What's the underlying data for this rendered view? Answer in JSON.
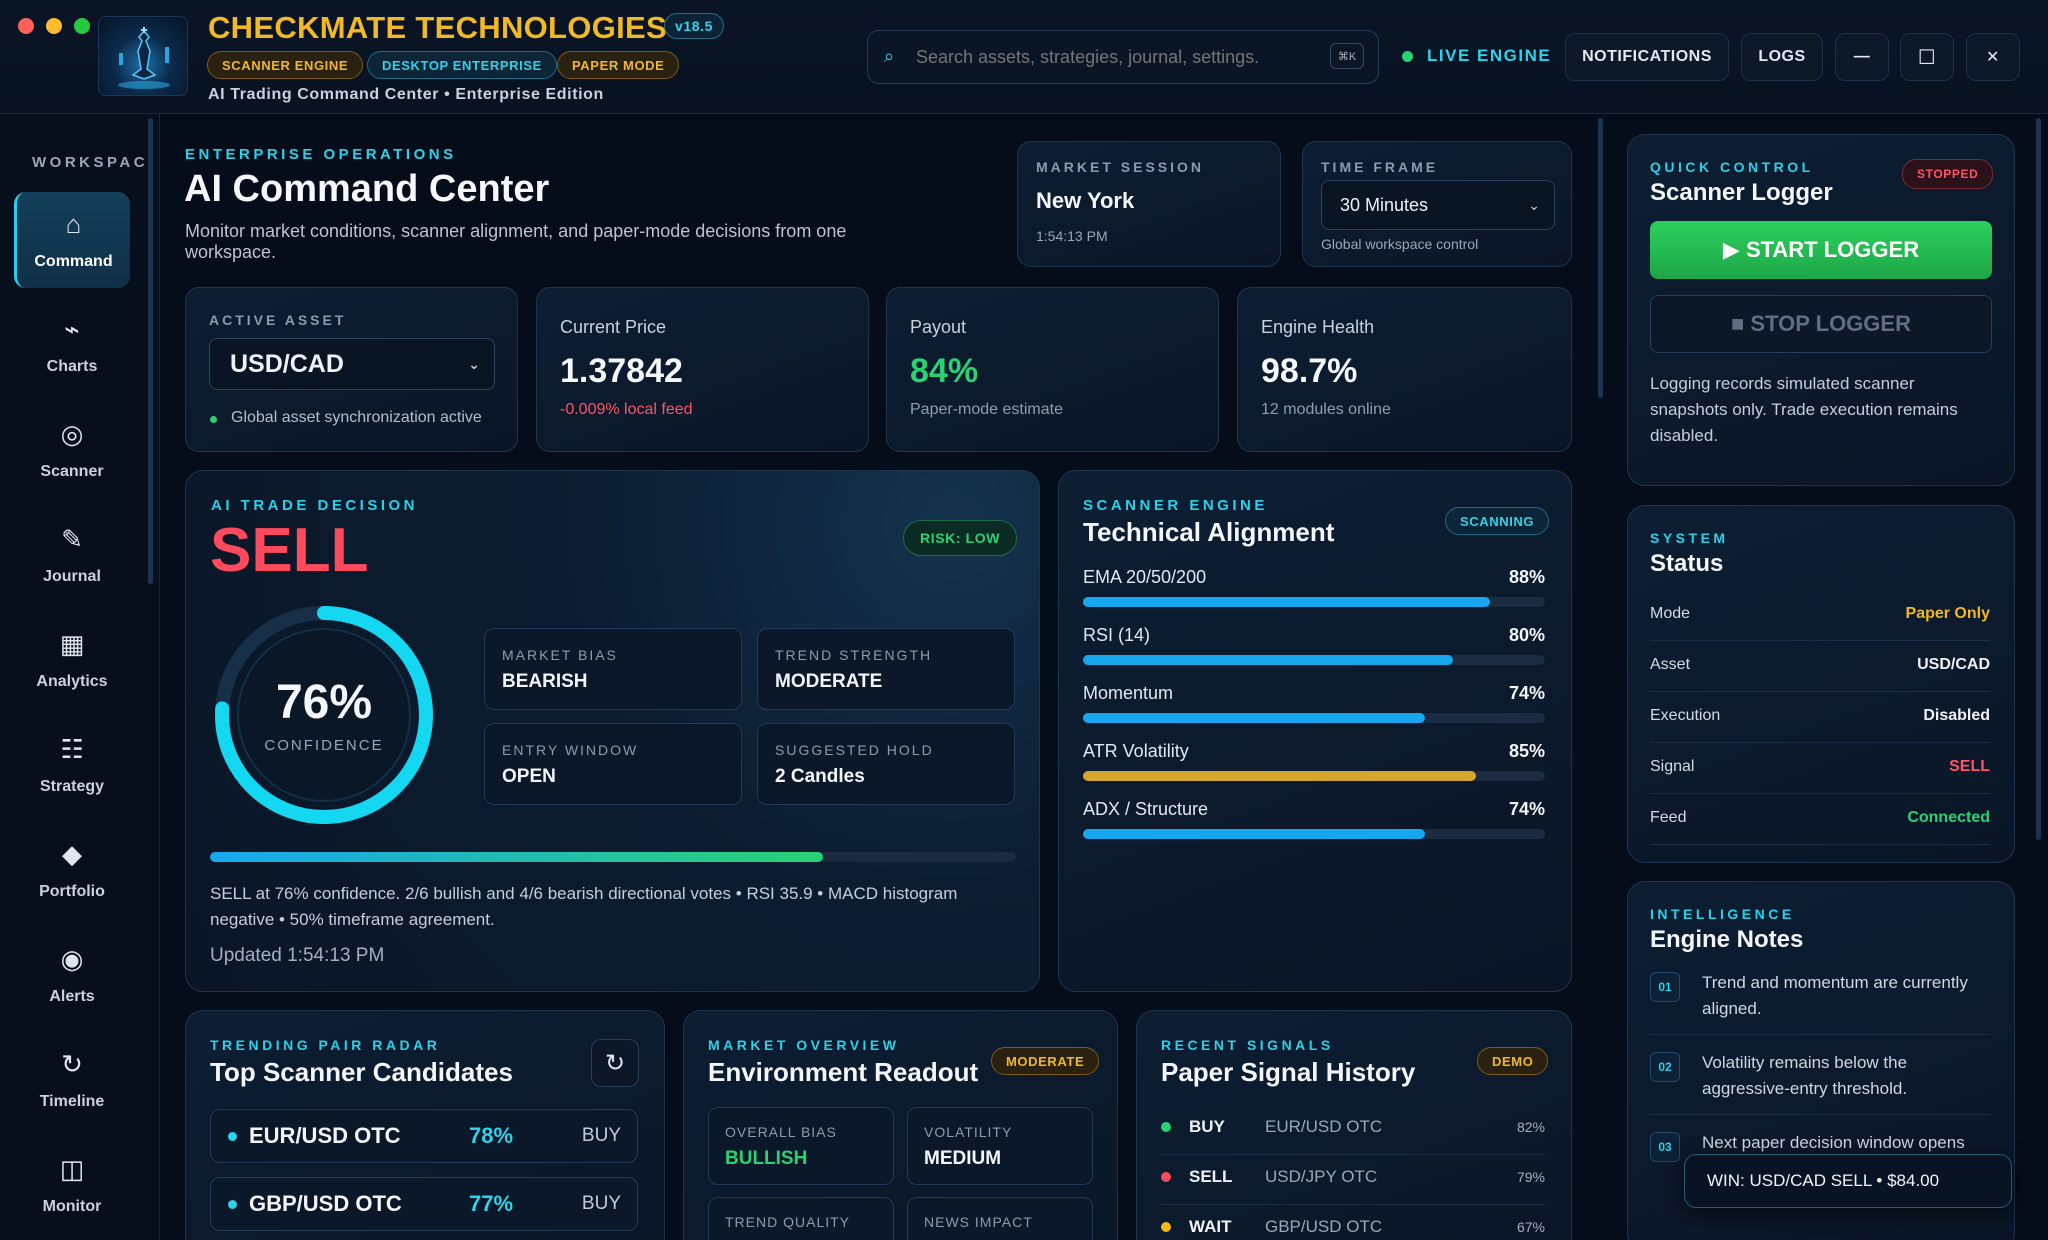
{
  "app": {
    "name": "CHECKMATE TECHNOLOGIES",
    "version": "v18.5",
    "badges": [
      "SCANNER ENGINE",
      "DESKTOP ENTERPRISE",
      "PAPER MODE"
    ],
    "subtitle": "AI Trading Command Center • Enterprise Edition"
  },
  "search": {
    "placeholder": "Search assets, strategies, journal, settings.",
    "shortcut": "⌘K"
  },
  "header": {
    "live_label": "LIVE ENGINE",
    "notifications_label": "NOTIFICATIONS",
    "logs_label": "LOGS",
    "minimize": "—",
    "maximize": "☐",
    "close": "✕"
  },
  "sidebar": {
    "title": "WORKSPACE",
    "items": [
      {
        "label": "Command",
        "icon": "⌂",
        "icon_name": "home-icon"
      },
      {
        "label": "Charts",
        "icon": "⌁",
        "icon_name": "chart-line-icon"
      },
      {
        "label": "Scanner",
        "icon": "◎",
        "icon_name": "target-icon"
      },
      {
        "label": "Journal",
        "icon": "✎",
        "icon_name": "pencil-icon"
      },
      {
        "label": "Analytics",
        "icon": "▦",
        "icon_name": "grid-chart-icon"
      },
      {
        "label": "Strategy",
        "icon": "☷",
        "icon_name": "list-icon"
      },
      {
        "label": "Portfolio",
        "icon": "◆",
        "icon_name": "diamond-icon"
      },
      {
        "label": "Alerts",
        "icon": "◉",
        "icon_name": "alert-dot-icon"
      },
      {
        "label": "Timeline",
        "icon": "↻",
        "icon_name": "history-icon"
      },
      {
        "label": "Monitor",
        "icon": "◫",
        "icon_name": "monitor-icon"
      }
    ]
  },
  "hero": {
    "eyebrow": "ENTERPRISE OPERATIONS",
    "title": "AI Command Center",
    "description": "Monitor market conditions, scanner alignment, and paper-mode decisions from one workspace."
  },
  "session": {
    "label": "MARKET SESSION",
    "city": "New York",
    "time": "1:54:13 PM"
  },
  "timeframe": {
    "label": "TIME FRAME",
    "value": "30 Minutes",
    "caption": "Global workspace control"
  },
  "kpis": {
    "asset": {
      "label": "ACTIVE ASSET",
      "value": "USD/CAD",
      "caption": "Global asset synchronization active"
    },
    "price": {
      "label": "Current Price",
      "value": "1.37842",
      "caption": "-0.009% local feed"
    },
    "payout": {
      "label": "Payout",
      "value": "84%",
      "caption": "Paper-mode estimate"
    },
    "health": {
      "label": "Engine Health",
      "value": "98.7%",
      "caption": "12 modules online"
    }
  },
  "decision": {
    "eyebrow": "AI TRADE DECISION",
    "signal": "SELL",
    "risk": "RISK: LOW",
    "confidence": 76,
    "confidence_text": "76%",
    "confidence_label": "CONFIDENCE",
    "boxes": [
      {
        "label": "MARKET BIAS",
        "value": "BEARISH"
      },
      {
        "label": "TREND STRENGTH",
        "value": "MODERATE"
      },
      {
        "label": "ENTRY WINDOW",
        "value": "OPEN"
      },
      {
        "label": "SUGGESTED HOLD",
        "value": "2 Candles"
      }
    ],
    "progress": 0.76,
    "summary": "SELL at 76% confidence. 2/6 bullish and 4/6 bearish directional votes • RSI 35.9 • MACD histogram negative • 50% timeframe agreement.",
    "updated": "Updated 1:54:13 PM"
  },
  "scanner": {
    "eyebrow": "SCANNER ENGINE",
    "title": "Technical Alignment",
    "status": "SCANNING",
    "metrics": [
      {
        "name": "EMA 20/50/200",
        "value": 88,
        "label": "88%",
        "color": "#17a7ef"
      },
      {
        "name": "RSI (14)",
        "value": 80,
        "label": "80%",
        "color": "#17a7ef"
      },
      {
        "name": "Momentum",
        "value": 74,
        "label": "74%",
        "color": "#17a7ef"
      },
      {
        "name": "ATR Volatility",
        "value": 85,
        "label": "85%",
        "color": "#d4a72c"
      },
      {
        "name": "ADX / Structure",
        "value": 74,
        "label": "74%",
        "color": "#17a7ef"
      }
    ]
  },
  "quick": {
    "eyebrow": "QUICK CONTROL",
    "title": "Scanner Logger",
    "state": "STOPPED",
    "start": "▶ START LOGGER",
    "stop": "■ STOP LOGGER",
    "note": "Logging records simulated scanner snapshots only. Trade execution remains disabled."
  },
  "status": {
    "eyebrow": "SYSTEM",
    "title": "Status",
    "rows": [
      {
        "key": "Mode",
        "value": "Paper Only",
        "color": "#f1b820"
      },
      {
        "key": "Asset",
        "value": "USD/CAD",
        "color": "#eef2f7"
      },
      {
        "key": "Execution",
        "value": "Disabled",
        "color": "#eef2f7"
      },
      {
        "key": "Signal",
        "value": "SELL",
        "color": "#ff5468"
      },
      {
        "key": "Feed",
        "value": "Connected",
        "color": "#2ad274"
      }
    ]
  },
  "notes": {
    "eyebrow": "INTELLIGENCE",
    "title": "Engine Notes",
    "items": [
      {
        "num": "01",
        "text": "Trend and momentum are currently aligned."
      },
      {
        "num": "02",
        "text": "Volatility remains below the aggressive-entry threshold."
      },
      {
        "num": "03",
        "text": "Next paper decision window opens"
      }
    ]
  },
  "toast": {
    "text": "WIN: USD/CAD SELL • $84.00"
  },
  "radar": {
    "eyebrow": "TRENDING PAIR RADAR",
    "title": "Top Scanner Candidates",
    "items": [
      {
        "pair": "EUR/USD OTC",
        "conf": "78%",
        "action": "BUY"
      },
      {
        "pair": "GBP/USD OTC",
        "conf": "77%",
        "action": "BUY"
      }
    ]
  },
  "overview": {
    "eyebrow": "MARKET OVERVIEW",
    "title": "Environment Readout",
    "badge": "MODERATE",
    "cells": [
      {
        "label": "OVERALL BIAS",
        "value": "BULLISH",
        "color": "#2ad274"
      },
      {
        "label": "VOLATILITY",
        "value": "MEDIUM",
        "color": "#f2f5fa"
      },
      {
        "label": "TREND QUALITY",
        "value": "",
        "color": "#f2f5fa"
      },
      {
        "label": "NEWS IMPACT",
        "value": "",
        "color": "#f2f5fa"
      }
    ]
  },
  "signals": {
    "eyebrow": "RECENT SIGNALS",
    "title": "Paper Signal History",
    "badge": "DEMO",
    "items": [
      {
        "action": "BUY",
        "pair": "EUR/USD OTC",
        "conf": "82%",
        "color": "#2ad274"
      },
      {
        "action": "SELL",
        "pair": "USD/JPY OTC",
        "conf": "79%",
        "color": "#ff4a5d"
      },
      {
        "action": "WAIT",
        "pair": "GBP/USD OTC",
        "conf": "67%",
        "color": "#f1b820"
      }
    ]
  }
}
